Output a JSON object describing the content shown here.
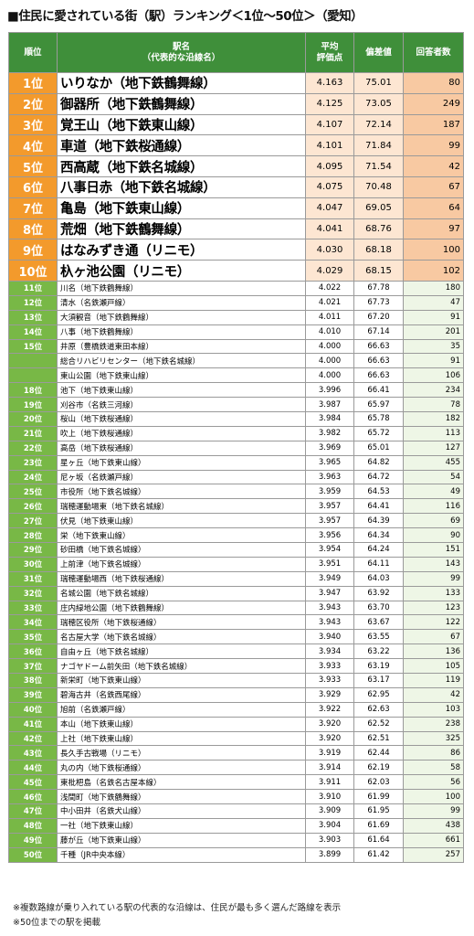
{
  "title": "■住民に愛されている街（駅）ランキング＜1位～50位＞（愛知）",
  "table": {
    "header": [
      "順位",
      "駅名\n（代表的な沿線名）",
      "平均\n評価点",
      "偏差値",
      "回答者数"
    ],
    "rows": [
      [
        "1位",
        "いりなか（地下鉄鶴舞線）",
        "4.163",
        "75.01",
        "80"
      ],
      [
        "2位",
        "御器所（地下鉄鶴舞線）",
        "4.125",
        "73.05",
        "249"
      ],
      [
        "3位",
        "覚王山（地下鉄東山線）",
        "4.107",
        "72.14",
        "187"
      ],
      [
        "4位",
        "車道（地下鉄桜通線）",
        "4.101",
        "71.84",
        "99"
      ],
      [
        "5位",
        "西高蔵（地下鉄名城線）",
        "4.095",
        "71.54",
        "42"
      ],
      [
        "6位",
        "八事日赤（地下鉄名城線）",
        "4.075",
        "70.48",
        "67"
      ],
      [
        "7位",
        "亀島（地下鉄東山線）",
        "4.047",
        "69.05",
        "64"
      ],
      [
        "8位",
        "荒畑（地下鉄鶴舞線）",
        "4.041",
        "68.76",
        "97"
      ],
      [
        "9位",
        "はなみずき通（リニモ）",
        "4.030",
        "68.18",
        "100"
      ],
      [
        "10位",
        "杁ヶ池公園（リニモ）",
        "4.029",
        "68.15",
        "102"
      ],
      [
        "11位",
        "川名（地下鉄鶴舞線）",
        "4.022",
        "67.78",
        "180"
      ],
      [
        "12位",
        "清水（名鉄瀬戸線）",
        "4.021",
        "67.73",
        "47"
      ],
      [
        "13位",
        "大須観音（地下鉄鶴舞線）",
        "4.011",
        "67.20",
        "91"
      ],
      [
        "14位",
        "八事（地下鉄鶴舞線）",
        "4.010",
        "67.14",
        "201"
      ],
      [
        "15位",
        "井原（豊橋鉄道東田本線）",
        "4.000",
        "66.63",
        "35"
      ],
      [
        null,
        "総合リハビリセンター（地下鉄名城線）",
        "4.000",
        "66.63",
        "91"
      ],
      [
        null,
        "東山公園（地下鉄東山線）",
        "4.000",
        "66.63",
        "106"
      ],
      [
        "18位",
        "池下（地下鉄東山線）",
        "3.996",
        "66.41",
        "234"
      ],
      [
        "19位",
        "刈谷市（名鉄三河線）",
        "3.987",
        "65.97",
        "78"
      ],
      [
        "20位",
        "桜山（地下鉄桜通線）",
        "3.984",
        "65.78",
        "182"
      ],
      [
        "21位",
        "吹上（地下鉄桜通線）",
        "3.982",
        "65.72",
        "113"
      ],
      [
        "22位",
        "高岳（地下鉄桜通線）",
        "3.969",
        "65.01",
        "127"
      ],
      [
        "23位",
        "星ヶ丘（地下鉄東山線）",
        "3.965",
        "64.82",
        "455"
      ],
      [
        "24位",
        "尼ヶ坂（名鉄瀬戸線）",
        "3.963",
        "64.72",
        "54"
      ],
      [
        "25位",
        "市役所（地下鉄名城線）",
        "3.959",
        "64.53",
        "49"
      ],
      [
        "26位",
        "瑞穂運動場東（地下鉄名城線）",
        "3.957",
        "64.41",
        "116"
      ],
      [
        "27位",
        "伏見（地下鉄東山線）",
        "3.957",
        "64.39",
        "69"
      ],
      [
        "28位",
        "栄（地下鉄東山線）",
        "3.956",
        "64.34",
        "90"
      ],
      [
        "29位",
        "砂田橋（地下鉄名城線）",
        "3.954",
        "64.24",
        "151"
      ],
      [
        "30位",
        "上前津（地下鉄名城線）",
        "3.951",
        "64.11",
        "143"
      ],
      [
        "31位",
        "瑞穂運動場西（地下鉄桜通線）",
        "3.949",
        "64.03",
        "99"
      ],
      [
        "32位",
        "名城公園（地下鉄名城線）",
        "3.947",
        "63.92",
        "133"
      ],
      [
        "33位",
        "庄内緑地公園（地下鉄鶴舞線）",
        "3.943",
        "63.70",
        "123"
      ],
      [
        "34位",
        "瑞穂区役所（地下鉄桜通線）",
        "3.943",
        "63.67",
        "122"
      ],
      [
        "35位",
        "名古屋大学（地下鉄名城線）",
        "3.940",
        "63.55",
        "67"
      ],
      [
        "36位",
        "自由ヶ丘（地下鉄名城線）",
        "3.934",
        "63.22",
        "136"
      ],
      [
        "37位",
        "ナゴヤドーム前矢田（地下鉄名城線）",
        "3.933",
        "63.19",
        "105"
      ],
      [
        "38位",
        "新栄町（地下鉄東山線）",
        "3.933",
        "63.17",
        "119"
      ],
      [
        "39位",
        "碧海古井（名鉄西尾線）",
        "3.929",
        "62.95",
        "42"
      ],
      [
        "40位",
        "旭前（名鉄瀬戸線）",
        "3.922",
        "62.63",
        "103"
      ],
      [
        "41位",
        "本山（地下鉄東山線）",
        "3.920",
        "62.52",
        "238"
      ],
      [
        "42位",
        "上社（地下鉄東山線）",
        "3.920",
        "62.51",
        "325"
      ],
      [
        "43位",
        "長久手古戦場（リニモ）",
        "3.919",
        "62.44",
        "86"
      ],
      [
        "44位",
        "丸の内（地下鉄桜通線）",
        "3.914",
        "62.19",
        "58"
      ],
      [
        "45位",
        "東枇杷島（名鉄名古屋本線）",
        "3.911",
        "62.03",
        "56"
      ],
      [
        "46位",
        "浅間町（地下鉄鶴舞線）",
        "3.910",
        "61.99",
        "100"
      ],
      [
        "47位",
        "中小田井（名鉄犬山線）",
        "3.909",
        "61.95",
        "99"
      ],
      [
        "48位",
        "一社（地下鉄東山線）",
        "3.904",
        "61.69",
        "438"
      ],
      [
        "49位",
        "藤が丘（地下鉄東山線）",
        "3.903",
        "61.64",
        "661"
      ],
      [
        "50位",
        "千種（JR中央本線）",
        "3.899",
        "61.42",
        "257"
      ]
    ]
  },
  "notes": [
    "※複数路線が乗り入れている駅の代表的な沿線は、住民が最も多く選んだ路線を表示",
    "※50位までの駅を掲載"
  ]
}
